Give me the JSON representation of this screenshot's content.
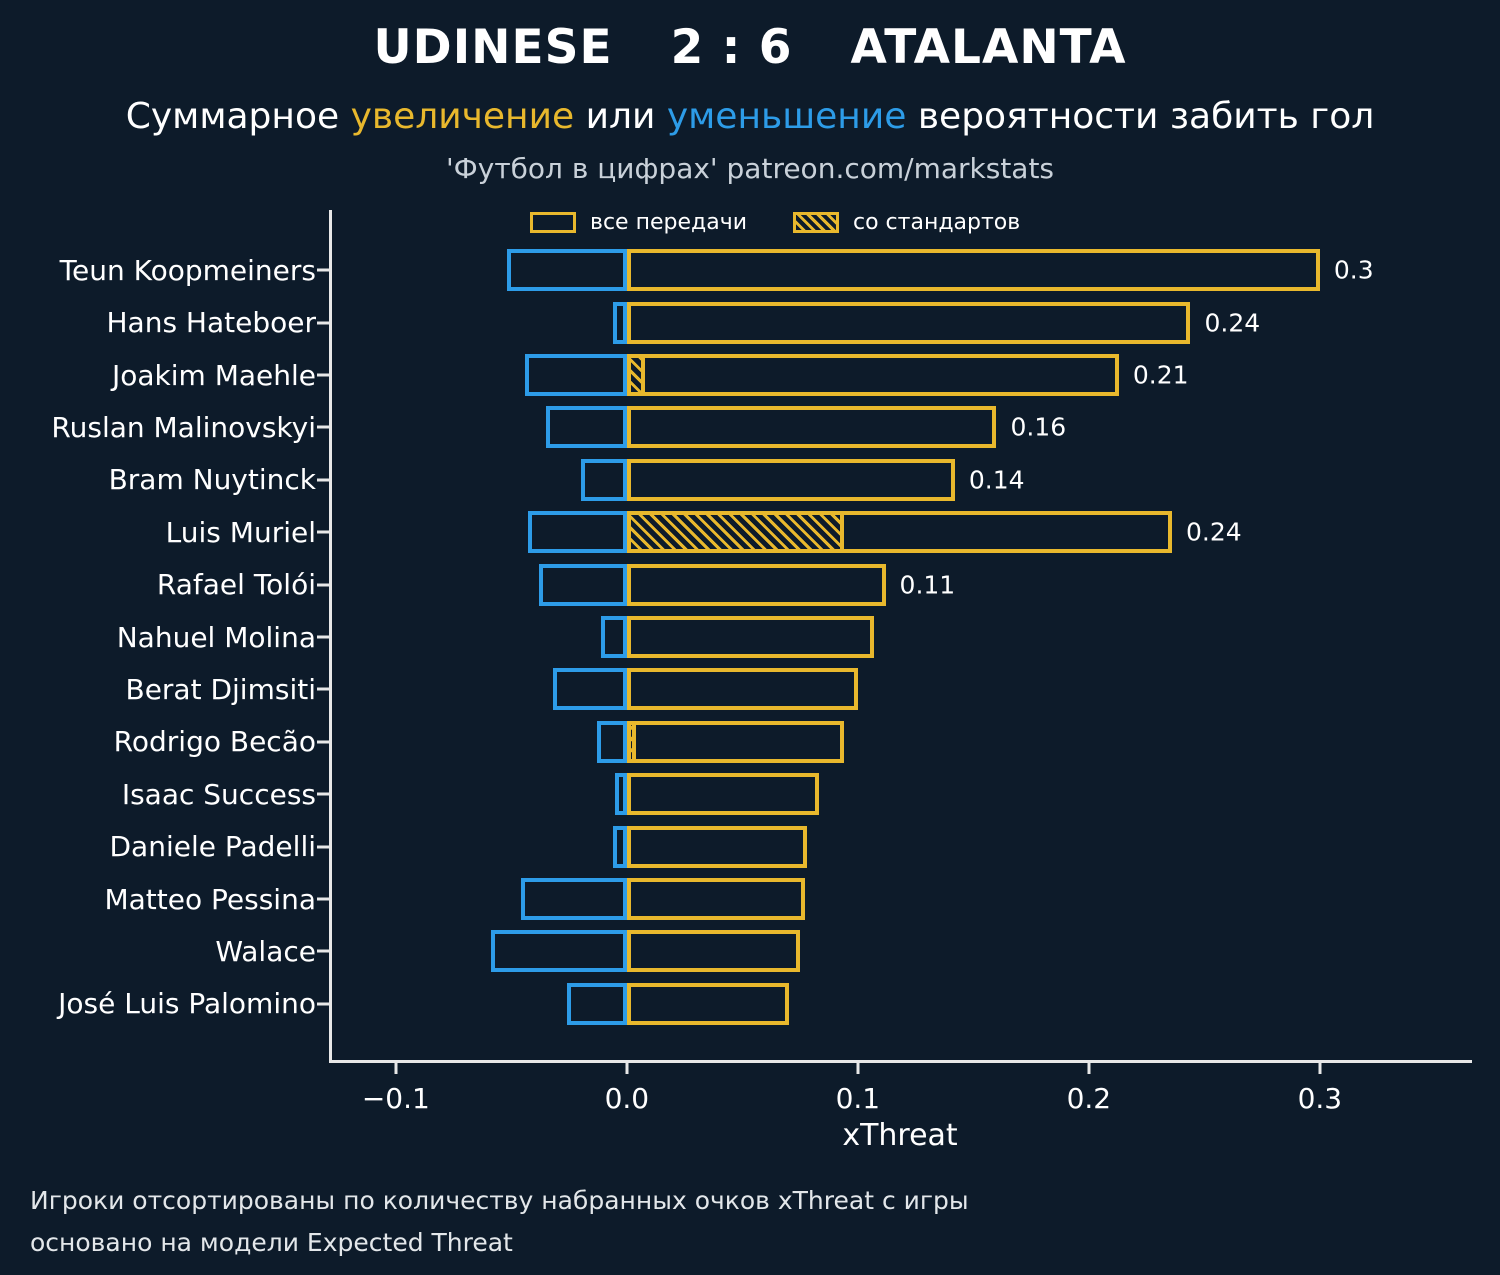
{
  "header": {
    "match": {
      "home": "UDINESE",
      "score": "2 : 6",
      "away": "ATALANTA"
    },
    "subtitle": {
      "part1": "Суммарное ",
      "highlight_increase": "увеличение",
      "part2": " или ",
      "highlight_decrease": "уменьшение",
      "part3": " вероятности забить гол"
    },
    "source": "'Футбол в цифрах' patreon.com/markstats"
  },
  "chart_data": {
    "type": "bar",
    "orientation": "horizontal",
    "xlabel": "xThreat",
    "xlim": [
      -0.1285,
      0.365
    ],
    "grid": false,
    "legend_position": "top",
    "legend": {
      "all_passes": "все передачи",
      "set_pieces": "со стандартов"
    },
    "colors": {
      "positive": "#e8b82d",
      "negative": "#2d9ce8",
      "background": "#0d1b2a",
      "axis": "#e8e8e8"
    },
    "xticks": [
      {
        "value": -0.1,
        "label": "−0.1"
      },
      {
        "value": 0.0,
        "label": "0.0"
      },
      {
        "value": 0.1,
        "label": "0.1"
      },
      {
        "value": 0.2,
        "label": "0.2"
      },
      {
        "value": 0.3,
        "label": "0.3"
      }
    ],
    "players": [
      {
        "name": "Teun Koopmeiners",
        "negative": -0.052,
        "positive": 0.3,
        "standard": 0,
        "label": "0.3"
      },
      {
        "name": "Hans Hateboer",
        "negative": -0.006,
        "positive": 0.244,
        "standard": 0,
        "label": "0.24"
      },
      {
        "name": "Joakim Maehle",
        "negative": -0.044,
        "positive": 0.213,
        "standard": 0.008,
        "label": "0.21"
      },
      {
        "name": "Ruslan Malinovskyi",
        "negative": -0.035,
        "positive": 0.16,
        "standard": 0,
        "label": "0.16"
      },
      {
        "name": "Bram Nuytinck",
        "negative": -0.02,
        "positive": 0.142,
        "standard": 0,
        "label": "0.14"
      },
      {
        "name": "Luis Muriel",
        "negative": -0.043,
        "positive": 0.236,
        "standard": 0.094,
        "label": "0.24"
      },
      {
        "name": "Rafael Tolói",
        "negative": -0.038,
        "positive": 0.112,
        "standard": 0,
        "label": "0.11"
      },
      {
        "name": "Nahuel Molina",
        "negative": -0.011,
        "positive": 0.107,
        "standard": 0,
        "label": ""
      },
      {
        "name": "Berat Djimsiti",
        "negative": -0.032,
        "positive": 0.1,
        "standard": 0,
        "label": ""
      },
      {
        "name": "Rodrigo Becão",
        "negative": -0.013,
        "positive": 0.094,
        "standard": 0.004,
        "label": ""
      },
      {
        "name": "Isaac Success",
        "negative": -0.005,
        "positive": 0.083,
        "standard": 0,
        "label": ""
      },
      {
        "name": "Daniele Padelli",
        "negative": -0.006,
        "positive": 0.078,
        "standard": 0,
        "label": ""
      },
      {
        "name": "Matteo Pessina",
        "negative": -0.046,
        "positive": 0.077,
        "standard": 0,
        "label": ""
      },
      {
        "name": "Walace",
        "negative": -0.059,
        "positive": 0.075,
        "standard": 0,
        "label": ""
      },
      {
        "name": "José Luis Palomino",
        "negative": -0.026,
        "positive": 0.07,
        "standard": 0,
        "label": ""
      }
    ]
  },
  "footer": {
    "line1": "Игроки отсортированы по количеству набранных очков xThreat с игры",
    "line2": "основано на модели Expected Threat"
  }
}
